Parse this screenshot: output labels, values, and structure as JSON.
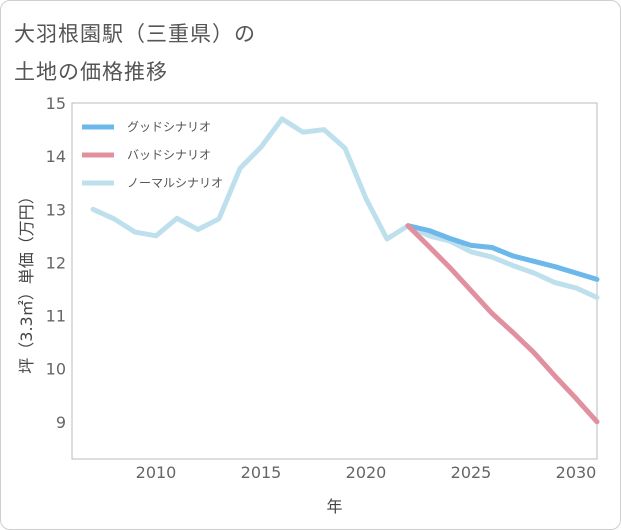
{
  "title_line1": "大羽根園駅（三重県）の",
  "title_line2": "土地の価格推移",
  "chart_data": {
    "type": "line",
    "xlabel": "年",
    "ylabel": "坪（3.3㎡）単価（万円）",
    "xlim": [
      2006,
      2031
    ],
    "ylim": [
      8.3,
      15
    ],
    "x_ticks": [
      2010,
      2015,
      2020,
      2025,
      2030
    ],
    "y_ticks": [
      9,
      10,
      11,
      12,
      13,
      14,
      15
    ],
    "series": [
      {
        "name": "グッドシナリオ",
        "color": "#6cb8ea",
        "width": 5,
        "x": [
          2022,
          2023,
          2024,
          2025,
          2026,
          2027,
          2028,
          2029,
          2030,
          2031
        ],
        "y": [
          12.69,
          12.6,
          12.45,
          12.32,
          12.28,
          12.12,
          12.02,
          11.92,
          11.8,
          11.68
        ]
      },
      {
        "name": "バッドシナリオ",
        "color": "#e0909e",
        "width": 5,
        "x": [
          2022,
          2023,
          2024,
          2025,
          2026,
          2027,
          2028,
          2029,
          2030,
          2031
        ],
        "y": [
          12.69,
          12.3,
          11.9,
          11.47,
          11.04,
          10.68,
          10.3,
          9.86,
          9.44,
          9.0
        ]
      },
      {
        "name": "ノーマルシナリオ",
        "color": "#bde0ec",
        "width": 5,
        "x": [
          2007,
          2008,
          2009,
          2010,
          2011,
          2012,
          2013,
          2014,
          2015,
          2016,
          2017,
          2018,
          2019,
          2020,
          2021,
          2022,
          2023,
          2024,
          2025,
          2026,
          2027,
          2028,
          2029,
          2030,
          2031
        ],
        "y": [
          13.0,
          12.82,
          12.57,
          12.5,
          12.83,
          12.62,
          12.82,
          13.77,
          14.17,
          14.7,
          14.45,
          14.5,
          14.15,
          13.2,
          12.44,
          12.69,
          12.5,
          12.4,
          12.2,
          12.1,
          11.94,
          11.8,
          11.62,
          11.52,
          11.34
        ]
      }
    ]
  }
}
